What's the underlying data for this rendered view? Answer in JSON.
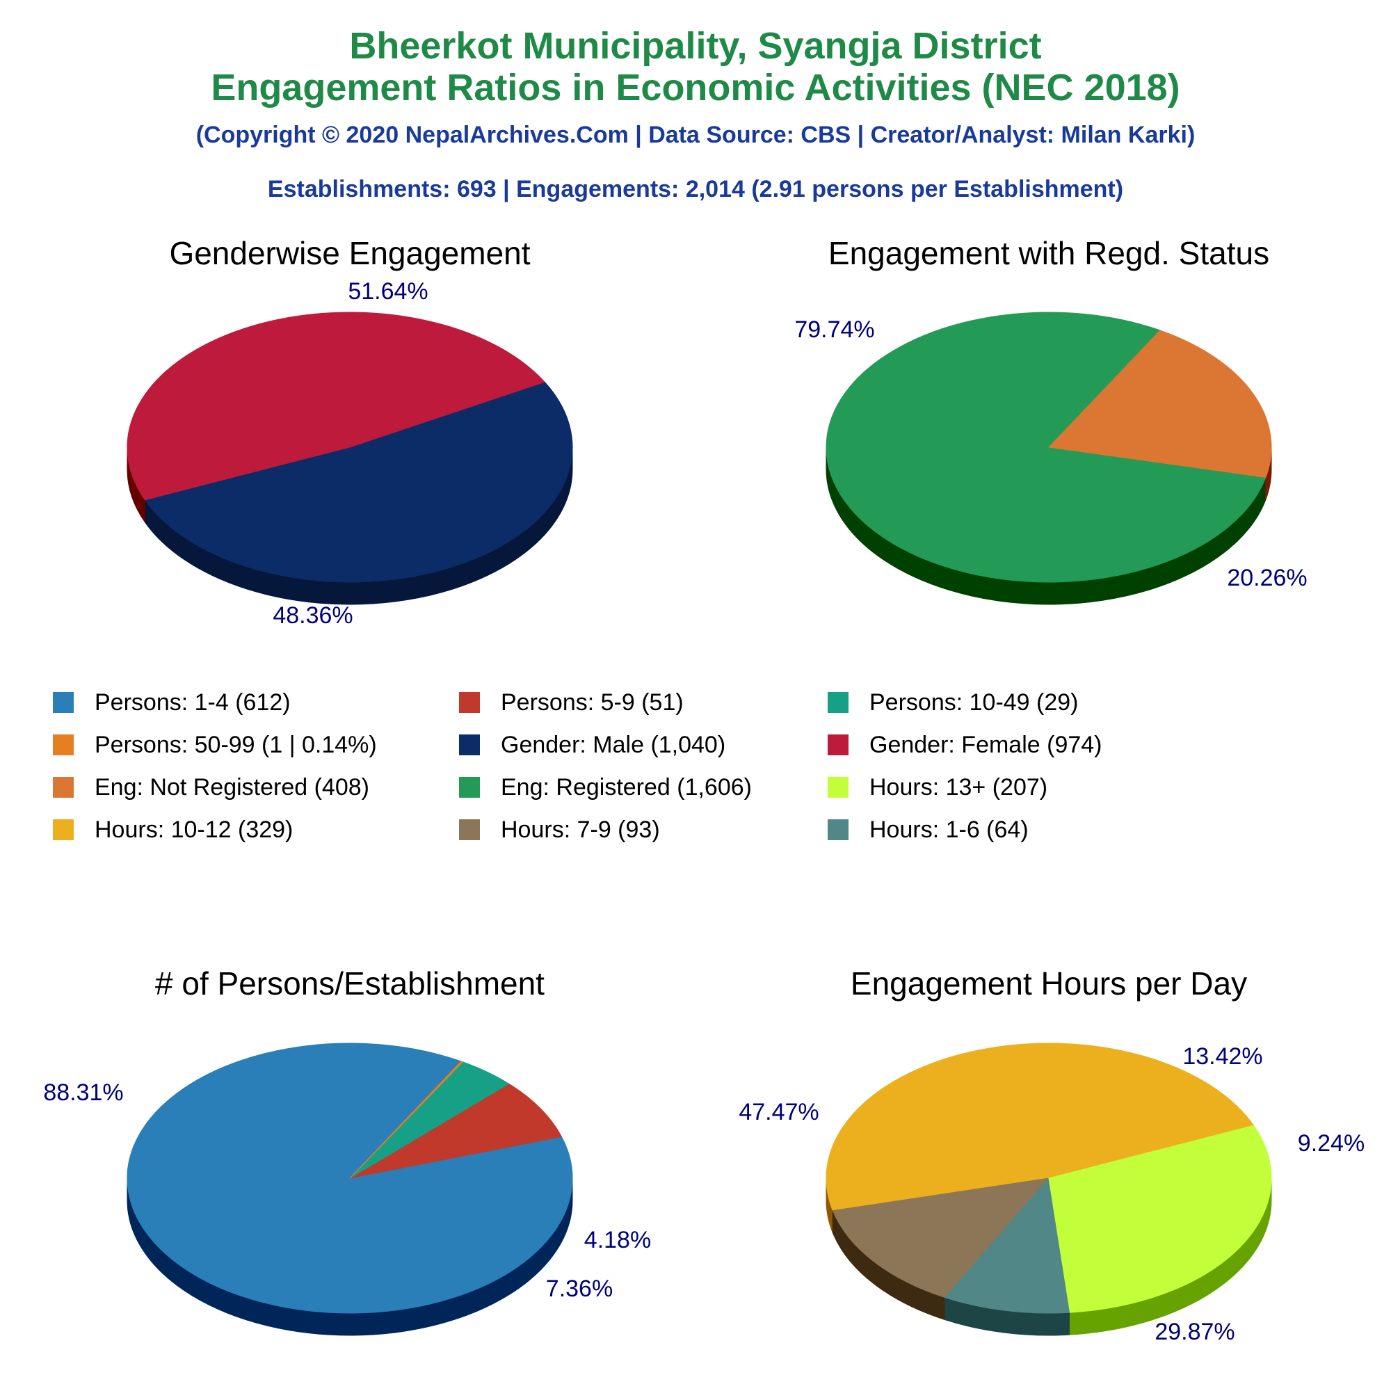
{
  "header": {
    "title_line1": "Bheerkot Municipality, Syangja District",
    "title_line2": "Engagement Ratios in Economic Activities (NEC 2018)",
    "copyright": "(Copyright © 2020 NepalArchives.Com | Data Source: CBS | Creator/Analyst: Milan Karki)",
    "stats": "Establishments: 693 | Engagements: 2,014 (2.91 persons per Establishment)"
  },
  "legend": [
    {
      "label": "Persons: 1-4 (612)",
      "color": "#2a7fb8"
    },
    {
      "label": "Persons: 5-9 (51)",
      "color": "#c0392b"
    },
    {
      "label": "Persons: 10-49 (29)",
      "color": "#16a085"
    },
    {
      "label": "Persons: 50-99 (1 | 0.14%)",
      "color": "#e67e22"
    },
    {
      "label": "Gender: Male (1,040)",
      "color": "#0b2c66"
    },
    {
      "label": "Gender: Female (974)",
      "color": "#be1a3c"
    },
    {
      "label": "Eng: Not Registered (408)",
      "color": "#dc7633"
    },
    {
      "label": "Eng: Registered (1,606)",
      "color": "#239b56"
    },
    {
      "label": "Hours: 13+ (207)",
      "color": "#c2ff3a"
    },
    {
      "label": "Hours: 10-12 (329)",
      "color": "#ecb01e"
    },
    {
      "label": "Hours: 7-9 (93)",
      "color": "#8b7657"
    },
    {
      "label": "Hours: 1-6 (64)",
      "color": "#528787"
    }
  ],
  "chart_data": [
    {
      "type": "pie",
      "title": "Genderwise Engagement",
      "categories": [
        "Gender: Male",
        "Gender: Female"
      ],
      "values": [
        1040,
        974
      ],
      "percent_labels": [
        "51.64%",
        "48.36%"
      ],
      "colors": [
        "#0b2c66",
        "#be1a3c"
      ],
      "side_colors": [
        "#05173a",
        "#650000"
      ]
    },
    {
      "type": "pie",
      "title": "Engagement with Regd. Status",
      "categories": [
        "Eng: Registered",
        "Eng: Not Registered"
      ],
      "values": [
        1606,
        408
      ],
      "percent_labels": [
        "79.74%",
        "20.26%"
      ],
      "colors": [
        "#239b56",
        "#dc7633"
      ],
      "side_colors": [
        "#004000",
        "#7a1a00"
      ]
    },
    {
      "type": "pie",
      "title": "# of Persons/Establishment",
      "categories": [
        "Persons: 1-4",
        "Persons: 5-9",
        "Persons: 10-49",
        "Persons: 50-99"
      ],
      "values": [
        612,
        51,
        29,
        1
      ],
      "percent_labels": [
        "88.31%",
        "7.36%",
        "4.18%",
        ""
      ],
      "colors": [
        "#2a7fb8",
        "#c0392b",
        "#16a085",
        "#e67e22"
      ],
      "side_colors": [
        "#002659",
        "#6b0000",
        "#004d33",
        "#7a3300"
      ]
    },
    {
      "type": "pie",
      "title": "Engagement Hours per Day",
      "categories": [
        "Hours: 10-12",
        "Hours: 7-9",
        "Hours: 1-6",
        "Hours: 13+"
      ],
      "values": [
        329,
        93,
        64,
        207
      ],
      "percent_labels": [
        "47.47%",
        "13.42%",
        "9.24%",
        "29.87%"
      ],
      "colors": [
        "#ecb01e",
        "#8b7657",
        "#528787",
        "#c2ff3a"
      ],
      "side_colors": [
        "#915700",
        "#3d2a10",
        "#1d4545",
        "#66a300"
      ]
    }
  ]
}
